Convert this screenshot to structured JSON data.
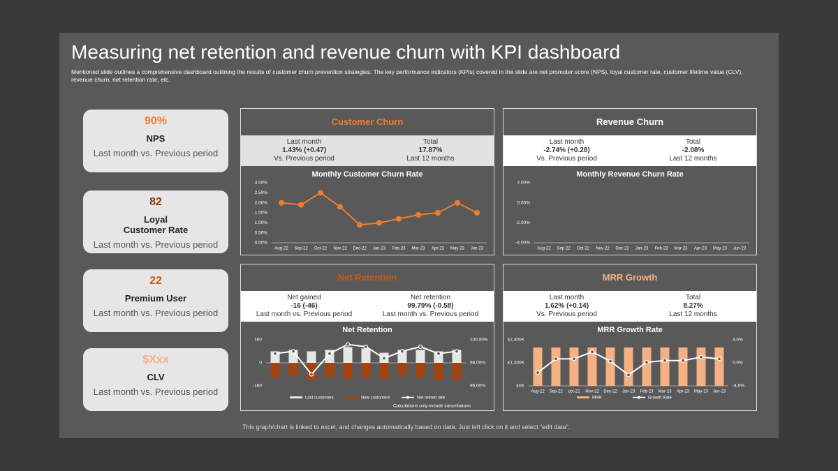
{
  "header": {
    "title": "Measuring net retention and revenue churn with KPI dashboard",
    "description": "Mentioned slide outlines a comprehensive dashboard outlining the results of customer churn prevention strategies. The key performance indicators (KPIs) covered in the slide are net promoter score (NPS), loyal customer rate, customer lifetime value (CLV), revenue churn, net retention rate,  etc."
  },
  "kpis": [
    {
      "value": "90%",
      "name": "NPS",
      "note": "Last month vs. Previous period",
      "color": "#ed7d31"
    },
    {
      "value": "82",
      "name": "Loyal\nCustomer Rate",
      "note": "Last month vs. Previous period",
      "color": "#843c0c"
    },
    {
      "value": "22",
      "name": "Premium User",
      "note": "Last month vs. Previous period",
      "color": "#c55a11"
    },
    {
      "value": "$Xxx",
      "name": "CLV",
      "note": "Last month vs. Previous period",
      "color": "#f4b183"
    }
  ],
  "panels": [
    {
      "title": "Customer Churn",
      "title_color": "#ed7d31",
      "stats_bg": "#e2e2e2",
      "stats": [
        {
          "label": "Last month",
          "value": "1.43%  (+0.47)",
          "note": "Vs. Previous  period"
        },
        {
          "label": "Total",
          "value": "17.87%",
          "note": "Last 12 months"
        }
      ],
      "chart": {
        "type": "line",
        "title": "Monthly Customer Churn Rate",
        "categories": [
          "Aug-22",
          "Sep-22",
          "Oct-22",
          "Nov-22",
          "Dec-22",
          "Jan-23",
          "Feb-23",
          "Mar-23",
          "Apr-23",
          "May-23",
          "Jun-23"
        ],
        "series": [
          {
            "name": "Churn rate",
            "kind": "line",
            "color": "#ed7d31",
            "values": [
              2.0,
              1.9,
              2.5,
              1.8,
              0.9,
              1.0,
              1.2,
              1.4,
              1.5,
              2.0,
              1.5
            ]
          }
        ],
        "ylim": [
          0,
          3
        ],
        "yticks": [
          {
            "value": 0,
            "label": "0.00%"
          },
          {
            "value": 0.5,
            "label": "0.50%"
          },
          {
            "value": 1,
            "label": "1.00%"
          },
          {
            "value": 1.5,
            "label": "1.50%"
          },
          {
            "value": 2,
            "label": "2.00%"
          },
          {
            "value": 2.5,
            "label": "2.50%"
          },
          {
            "value": 3,
            "label": "3.00%"
          }
        ]
      }
    },
    {
      "title": "Revenue Churn",
      "title_color": "#ffffff",
      "stats_bg": "#ffffff",
      "stats": [
        {
          "label": "Last month",
          "value": "-2.74%  (+0.28)",
          "note": "Vs. Previous  period"
        },
        {
          "label": "Total",
          "value": "-2.08%",
          "note": "Last 12 months"
        }
      ],
      "chart": {
        "type": "line",
        "title": "Monthly Revenue Churn Rate",
        "categories": [
          "Aug-22",
          "Sep-22",
          "Oct-22",
          "Nov-22",
          "Dec-22",
          "Jan-23",
          "Feb-23",
          "Mar-23",
          "Apr-23",
          "May-23",
          "Jun-23"
        ],
        "series": [],
        "ylim": [
          -4,
          2
        ],
        "yticks": [
          {
            "value": -4,
            "label": "-4.00%"
          },
          {
            "value": -2,
            "label": "-2.00%"
          },
          {
            "value": 0,
            "label": "0.00%"
          },
          {
            "value": 2,
            "label": "2.00%"
          }
        ]
      }
    },
    {
      "title": "Net Retention",
      "title_color": "#c55a11",
      "stats_bg": "#ffffff",
      "stats": [
        {
          "label": "Net gained",
          "value": "-16 (-46)",
          "note": "Last month vs. Previous period"
        },
        {
          "label": "Net retention",
          "value": "99.79% (-0.58)",
          "note": "Last month vs. Previous period"
        }
      ],
      "chart": {
        "type": "combo",
        "title": "Net Retention",
        "note": "Calculations only include cancellations",
        "categories": [
          null,
          null,
          null,
          null,
          null,
          null,
          null,
          null,
          null,
          null,
          null
        ],
        "series": [
          {
            "name": "Lost customers",
            "kind": "bar",
            "color": "#e7e6e6",
            "values": [
              80,
              90,
              80,
              90,
              110,
              100,
              70,
              90,
              90,
              80,
              90
            ]
          },
          {
            "name": "New customers",
            "kind": "bar",
            "color": "#a5430f",
            "values": [
              -100,
              -90,
              -120,
              -100,
              -110,
              -100,
              -110,
              -90,
              -100,
              -120,
              -120
            ]
          },
          {
            "name": "Net retired rate",
            "kind": "line",
            "axis": "y2",
            "color": "#ffffff",
            "values": [
              98.8,
              99.0,
              97.0,
              98.8,
              99.6,
              99.4,
              98.4,
              99.0,
              99.4,
              98.8,
              99.0
            ]
          }
        ],
        "ylim": [
          -160,
          160
        ],
        "yticks": [
          -160,
          0,
          160
        ],
        "y2lim": [
          96,
          100
        ],
        "y2ticks": [
          {
            "value": 96,
            "label": "96.00%"
          },
          {
            "value": 98,
            "label": "98.00%"
          },
          {
            "value": 100,
            "label": "100.00%"
          }
        ]
      }
    },
    {
      "title": "MRR Growth",
      "title_color": "#f4b183",
      "stats_bg": "#ffffff",
      "stats": [
        {
          "label": "Last month",
          "value": "1.62% (+0.14)",
          "note": "Vs. Previous period"
        },
        {
          "label": "Total",
          "value": "8.27%",
          "note": "Last 12 months"
        }
      ],
      "chart": {
        "type": "combo",
        "title": "MRR Growth Rate",
        "categories": [
          "Aug-22",
          "Sep-22",
          "oct-22",
          "Nov-22",
          "Dec-22",
          "Jan-23",
          "Feb-23",
          "Mar-23",
          "Apr-23",
          "May-23",
          "Jun-23"
        ],
        "series": [
          {
            "name": "MRR",
            "kind": "bar",
            "color": "#f4b183",
            "values": [
              2000,
              2000,
              2000,
              2000,
              2000,
              2000,
              2000,
              2000,
              2000,
              2000,
              2000
            ]
          },
          {
            "name": "Growth Rate",
            "kind": "line",
            "axis": "y2",
            "color": "#ffffff",
            "values": [
              -1.7,
              0.7,
              0.7,
              1.9,
              0.3,
              -2.1,
              0.1,
              0.4,
              0.4,
              1.0,
              0.7
            ]
          }
        ],
        "ylim": [
          0,
          2400
        ],
        "yticks": [
          {
            "value": 0,
            "label": "£0K"
          },
          {
            "value": 1200,
            "label": "£1,200K"
          },
          {
            "value": 2400,
            "label": "£2,400K"
          }
        ],
        "y2lim": [
          -4,
          4
        ],
        "y2ticks": [
          {
            "value": -4,
            "label": "-4.0%"
          },
          {
            "value": 0,
            "label": "0.0%"
          },
          {
            "value": 4,
            "label": "4.0%"
          }
        ]
      }
    }
  ],
  "footer": "This graph/chart is linked to excel, and changes automatically based on data. Just left click on it and select “edit data”."
}
